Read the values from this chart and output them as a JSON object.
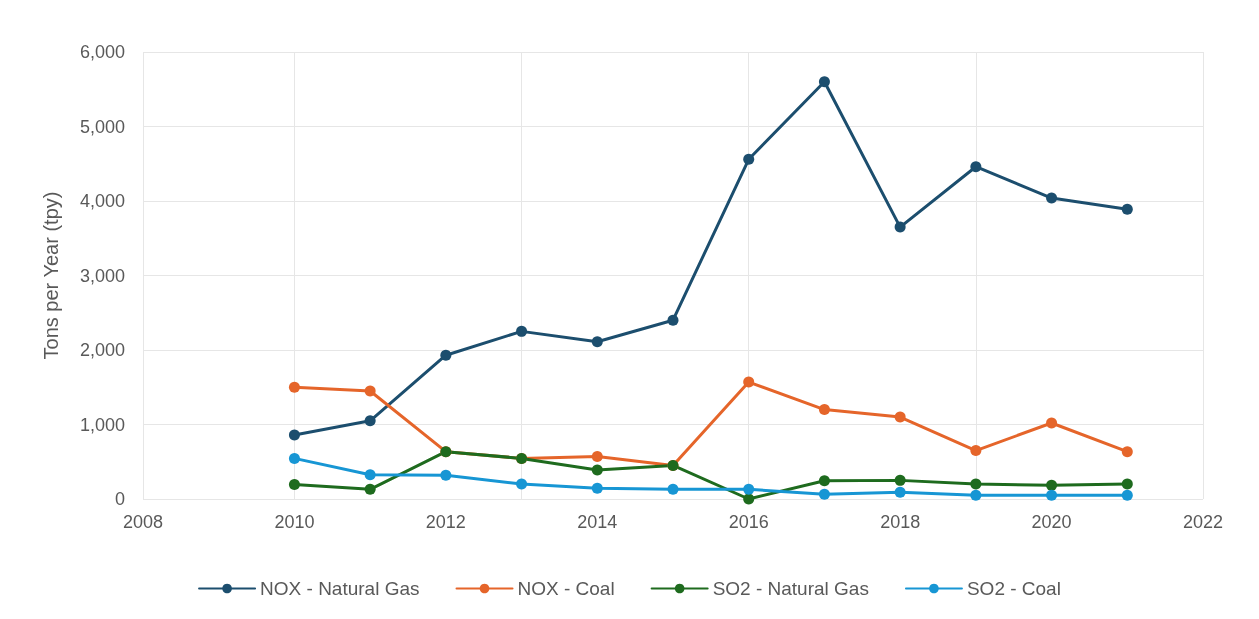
{
  "chart_data": {
    "type": "line",
    "ylabel": "Tons per Year (tpy)",
    "x": [
      2010,
      2011,
      2012,
      2013,
      2014,
      2015,
      2016,
      2017,
      2018,
      2019,
      2020,
      2021
    ],
    "series": [
      {
        "name": "NOX - Natural Gas",
        "color": "#1c4e6e",
        "values": [
          860,
          1050,
          1930,
          2250,
          2110,
          2400,
          4560,
          5600,
          3650,
          4460,
          4040,
          3890
        ]
      },
      {
        "name": "NOX - Coal",
        "color": "#e5652a",
        "values": [
          1500,
          1450,
          635,
          545,
          570,
          450,
          1570,
          1200,
          1100,
          650,
          1020,
          635
        ]
      },
      {
        "name": "SO2 - Natural Gas",
        "color": "#1e6b1e",
        "values": [
          195,
          130,
          635,
          545,
          390,
          450,
          0,
          245,
          250,
          200,
          185,
          200
        ]
      },
      {
        "name": "SO2 - Coal",
        "color": "#1796d4",
        "values": [
          545,
          325,
          320,
          200,
          145,
          130,
          130,
          65,
          90,
          50,
          50,
          50
        ]
      }
    ],
    "xlim": [
      2008,
      2022
    ],
    "xticks": [
      2008,
      2010,
      2012,
      2014,
      2016,
      2018,
      2020,
      2022
    ],
    "ylim": [
      0,
      6000
    ],
    "yticks": [
      {
        "value": 0,
        "label": "0"
      },
      {
        "value": 1000,
        "label": "1,000"
      },
      {
        "value": 2000,
        "label": "2,000"
      },
      {
        "value": 3000,
        "label": "3,000"
      },
      {
        "value": 4000,
        "label": "4,000"
      },
      {
        "value": 5000,
        "label": "5,000"
      },
      {
        "value": 6000,
        "label": "6,000"
      }
    ],
    "grid": true,
    "legend": "bottom",
    "marker": "circle",
    "line_style": "solid"
  }
}
